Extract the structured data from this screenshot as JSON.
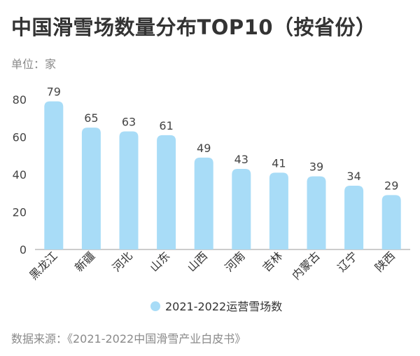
{
  "header": {
    "title": "中国滑雪场数量分布TOP10（按省份）",
    "unit_label": "单位：家"
  },
  "footer": {
    "source": "数据来源：《2021-2022中国滑雪产业白皮书》"
  },
  "chart_data": {
    "type": "bar",
    "categories": [
      "黑龙江",
      "新疆",
      "河北",
      "山东",
      "山西",
      "河南",
      "吉林",
      "内蒙古",
      "辽宁",
      "陕西"
    ],
    "series": [
      {
        "name": "2021-2022运营雪场数",
        "values": [
          79,
          65,
          63,
          61,
          49,
          43,
          41,
          39,
          34,
          29
        ],
        "color": "#a8dcf7"
      }
    ],
    "yticks": [
      0,
      20,
      40,
      60,
      80
    ],
    "ylim": [
      0,
      80
    ],
    "grid": false,
    "legend_position": "bottom-center",
    "data_labels": true
  }
}
